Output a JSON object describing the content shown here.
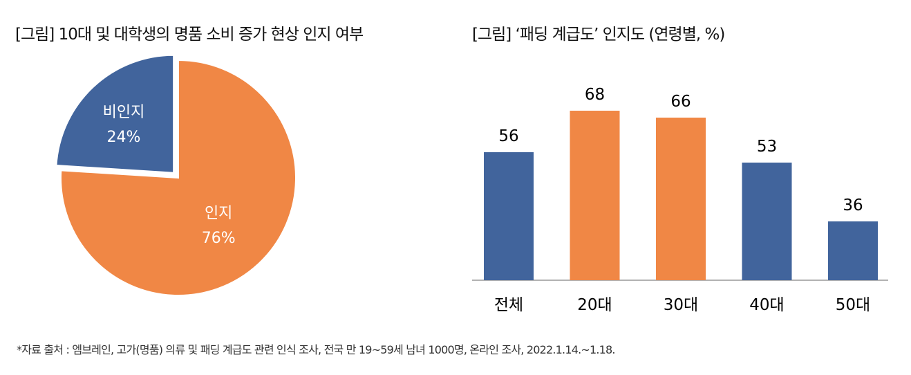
{
  "chart_data": [
    {
      "type": "pie",
      "title": "[그림] 10대 및 대학생의 명품 소비 증가 현상 인지 여부",
      "slices": [
        {
          "label": "인지",
          "value": 76,
          "value_label": "76%",
          "color": "#F08745"
        },
        {
          "label": "비인지",
          "value": 24,
          "value_label": "24%",
          "color": "#41649C"
        }
      ]
    },
    {
      "type": "bar",
      "title": "[그림] ‘패딩 계급도’ 인지도 (연령별, %)",
      "categories": [
        "전체",
        "20대",
        "30대",
        "40대",
        "50대"
      ],
      "values": [
        56,
        68,
        66,
        53,
        36
      ],
      "colors": [
        "#41649C",
        "#F08745",
        "#F08745",
        "#41649C",
        "#41649C"
      ],
      "ylim": [
        19,
        70
      ]
    }
  ],
  "footnote": "*자료 출처 : 엠브레인, 고가(명품) 의류 및 패딩 계급도 관련 인식 조사, 전국 만 19~59세 남녀 1000명, 온라인 조사, 2022.1.14.~1.18."
}
